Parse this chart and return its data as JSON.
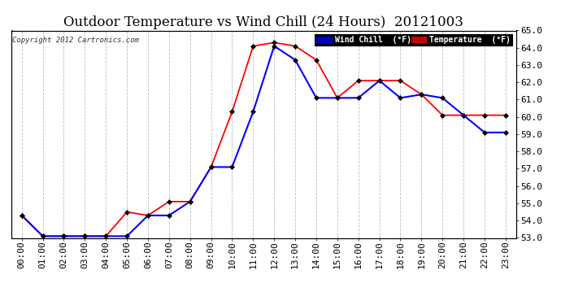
{
  "title": "Outdoor Temperature vs Wind Chill (24 Hours)  20121003",
  "copyright": "Copyright 2012 Cartronics.com",
  "ylim": [
    53.0,
    65.0
  ],
  "yticks": [
    53.0,
    54.0,
    55.0,
    56.0,
    57.0,
    58.0,
    59.0,
    60.0,
    61.0,
    62.0,
    63.0,
    64.0,
    65.0
  ],
  "hours": [
    "00:00",
    "01:00",
    "02:00",
    "03:00",
    "04:00",
    "05:00",
    "06:00",
    "07:00",
    "08:00",
    "09:00",
    "10:00",
    "11:00",
    "12:00",
    "13:00",
    "14:00",
    "15:00",
    "16:00",
    "17:00",
    "18:00",
    "19:00",
    "20:00",
    "21:00",
    "22:00",
    "23:00"
  ],
  "temperature": [
    54.3,
    53.1,
    53.1,
    53.1,
    53.1,
    54.5,
    54.3,
    55.1,
    55.1,
    57.1,
    60.3,
    64.1,
    64.3,
    64.1,
    63.3,
    61.1,
    62.1,
    62.1,
    62.1,
    61.3,
    60.1,
    60.1,
    60.1,
    60.1
  ],
  "wind_chill": [
    54.3,
    53.1,
    53.1,
    53.1,
    53.1,
    53.1,
    54.3,
    54.3,
    55.1,
    57.1,
    57.1,
    60.3,
    64.1,
    63.3,
    61.1,
    61.1,
    61.1,
    62.1,
    61.1,
    61.3,
    61.1,
    60.1,
    59.1,
    59.1
  ],
  "temp_color": "#FF0000",
  "wind_chill_color": "#0000FF",
  "marker_color": "#000000",
  "bg_color": "#FFFFFF",
  "grid_color": "#BBBBBB",
  "title_fontsize": 12,
  "tick_fontsize": 8,
  "legend_wc_bg": "#0000CC",
  "legend_temp_bg": "#CC0000",
  "legend_text_color": "#FFFFFF",
  "legend_label_wc": "Wind Chill  (°F)",
  "legend_label_temp": "Temperature  (°F)"
}
